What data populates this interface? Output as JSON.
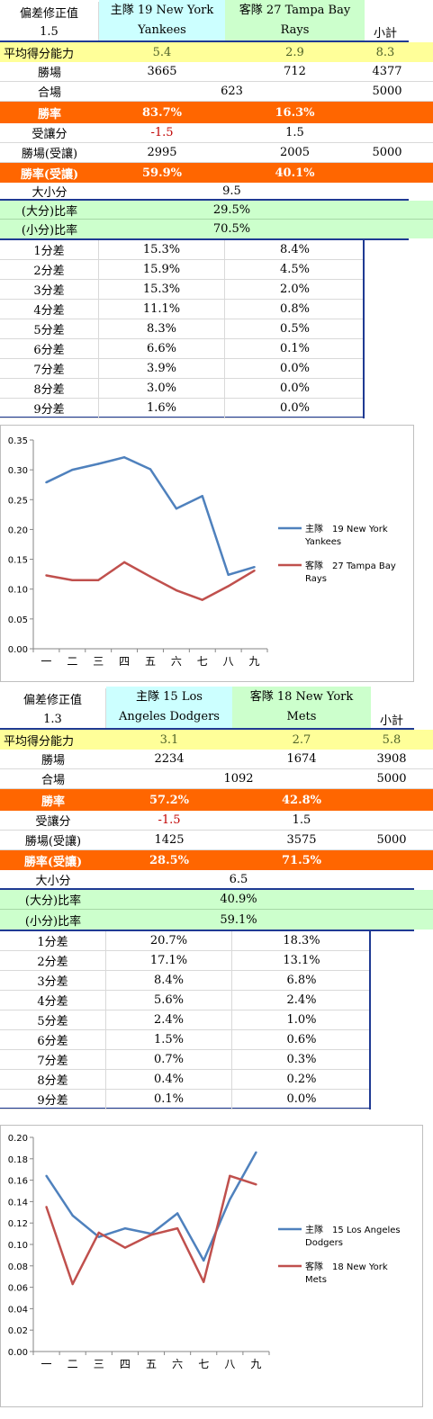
{
  "tables": [
    {
      "header": {
        "bias_label": "偏差修正值",
        "bias_value": "1.5",
        "home_label": "主隊 19 New York",
        "home_team_line2": "Yankees",
        "away_label": "客隊 27 Tampa Bay",
        "away_team_line2": "Rays",
        "subtotal_label": "小計"
      },
      "avg": {
        "label": "平均得分能力",
        "home": "5.4",
        "away": "2.9",
        "total": "8.3"
      },
      "wins": {
        "label": "勝場",
        "home": "3665",
        "away": "712",
        "total": "4377"
      },
      "draws": {
        "label": "合場",
        "value": "623",
        "total": "5000"
      },
      "winrate": {
        "label": "勝率",
        "home": "83.7%",
        "away": "16.3%"
      },
      "handicap": {
        "label": "受讓分",
        "home": "-1.5",
        "away": "1.5"
      },
      "handicap_wins": {
        "label": "勝場(受讓)",
        "home": "2995",
        "away": "2005",
        "total": "5000"
      },
      "handicap_rate": {
        "label": "勝率(受讓)",
        "home": "59.9%",
        "away": "40.1%"
      },
      "overunder": {
        "label": "大小分",
        "value": "9.5"
      },
      "over_rate": {
        "label": "(大分)比率",
        "value": "29.5%"
      },
      "under_rate": {
        "label": "(小分)比率",
        "value": "70.5%"
      },
      "diff_rows": [
        {
          "label": "1分差",
          "home": "15.3%",
          "away": "8.4%"
        },
        {
          "label": "2分差",
          "home": "15.9%",
          "away": "4.5%"
        },
        {
          "label": "3分差",
          "home": "15.3%",
          "away": "2.0%"
        },
        {
          "label": "4分差",
          "home": "11.1%",
          "away": "0.8%"
        },
        {
          "label": "5分差",
          "home": "8.3%",
          "away": "0.5%"
        },
        {
          "label": "6分差",
          "home": "6.6%",
          "away": "0.1%"
        },
        {
          "label": "7分差",
          "home": "3.9%",
          "away": "0.0%"
        },
        {
          "label": "8分差",
          "home": "3.0%",
          "away": "0.0%"
        },
        {
          "label": "9分差",
          "home": "1.6%",
          "away": "0.0%"
        }
      ]
    },
    {
      "header": {
        "bias_label": "偏差修正值",
        "bias_value": "1.3",
        "home_label": "主隊 15 Los",
        "home_team_line2": "Angeles Dodgers",
        "away_label": "客隊 18 New York",
        "away_team_line2": "Mets",
        "subtotal_label": "小計"
      },
      "avg": {
        "label": "平均得分能力",
        "home": "3.1",
        "away": "2.7",
        "total": "5.8"
      },
      "wins": {
        "label": "勝場",
        "home": "2234",
        "away": "1674",
        "total": "3908"
      },
      "draws": {
        "label": "合場",
        "value": "1092",
        "total": "5000"
      },
      "winrate": {
        "label": "勝率",
        "home": "57.2%",
        "away": "42.8%"
      },
      "handicap": {
        "label": "受讓分",
        "home": "-1.5",
        "away": "1.5"
      },
      "handicap_wins": {
        "label": "勝場(受讓)",
        "home": "1425",
        "away": "3575",
        "total": "5000"
      },
      "handicap_rate": {
        "label": "勝率(受讓)",
        "home": "28.5%",
        "away": "71.5%"
      },
      "overunder": {
        "label": "大小分",
        "value": "6.5"
      },
      "over_rate": {
        "label": "(大分)比率",
        "value": "40.9%"
      },
      "under_rate": {
        "label": "(小分)比率",
        "value": "59.1%"
      },
      "diff_rows": [
        {
          "label": "1分差",
          "home": "20.7%",
          "away": "18.3%"
        },
        {
          "label": "2分差",
          "home": "17.1%",
          "away": "13.1%"
        },
        {
          "label": "3分差",
          "home": "8.4%",
          "away": "6.8%"
        },
        {
          "label": "4分差",
          "home": "5.6%",
          "away": "2.4%"
        },
        {
          "label": "5分差",
          "home": "2.4%",
          "away": "1.0%"
        },
        {
          "label": "6分差",
          "home": "1.5%",
          "away": "0.6%"
        },
        {
          "label": "7分差",
          "home": "0.7%",
          "away": "0.3%"
        },
        {
          "label": "8分差",
          "home": "0.4%",
          "away": "0.2%"
        },
        {
          "label": "9分差",
          "home": "0.1%",
          "away": "0.0%"
        }
      ]
    }
  ],
  "colors": {
    "home_header_bg": "#ccffff",
    "away_header_bg": "#ccffcc",
    "avg_row_bg": "#ffff99",
    "orange_row_bg": "#ff6600",
    "green_row_bg": "#ccffcc",
    "home_series": "#4f81bd",
    "away_series": "#c0504d",
    "negative_text": "#c00000",
    "table_border": "#1f3a93"
  },
  "chart_data": [
    {
      "type": "line",
      "x": [
        "一",
        "二",
        "三",
        "四",
        "五",
        "六",
        "七",
        "八",
        "九"
      ],
      "ylim": [
        0,
        0.35
      ],
      "yticks": [
        "0.00",
        "0.05",
        "0.10",
        "0.15",
        "0.20",
        "0.25",
        "0.30",
        "0.35"
      ],
      "grid": false,
      "legend_position": "right",
      "series": [
        {
          "name": "主隊 19 New York Yankees",
          "legend_line1": "主隊　19 New York",
          "legend_line2": "Yankees",
          "color": "#4f81bd",
          "values": [
            0.279,
            0.3,
            0.31,
            0.321,
            0.301,
            0.235,
            0.256,
            0.124,
            0.137
          ]
        },
        {
          "name": "客隊 27 Tampa Bay Rays",
          "legend_line1": "客隊　27 Tampa Bay",
          "legend_line2": "Rays",
          "color": "#c0504d",
          "values": [
            0.123,
            0.115,
            0.115,
            0.145,
            0.121,
            0.098,
            0.082,
            0.105,
            0.131
          ]
        }
      ]
    },
    {
      "type": "line",
      "x": [
        "一",
        "二",
        "三",
        "四",
        "五",
        "六",
        "七",
        "八",
        "九"
      ],
      "ylim": [
        0,
        0.2
      ],
      "yticks": [
        "0.00",
        "0.02",
        "0.04",
        "0.06",
        "0.08",
        "0.10",
        "0.12",
        "0.14",
        "0.16",
        "0.18",
        "0.20"
      ],
      "grid": false,
      "legend_position": "right",
      "series": [
        {
          "name": "主隊 15 Los Angeles Dodgers",
          "legend_line1": "主隊　15 Los Angeles",
          "legend_line2": "Dodgers",
          "color": "#4f81bd",
          "values": [
            0.164,
            0.127,
            0.107,
            0.115,
            0.11,
            0.129,
            0.085,
            0.142,
            0.186
          ]
        },
        {
          "name": "客隊 18 New York Mets",
          "legend_line1": "客隊　18 New York",
          "legend_line2": "Mets",
          "color": "#c0504d",
          "values": [
            0.135,
            0.063,
            0.111,
            0.097,
            0.109,
            0.115,
            0.065,
            0.164,
            0.156
          ]
        }
      ]
    }
  ]
}
